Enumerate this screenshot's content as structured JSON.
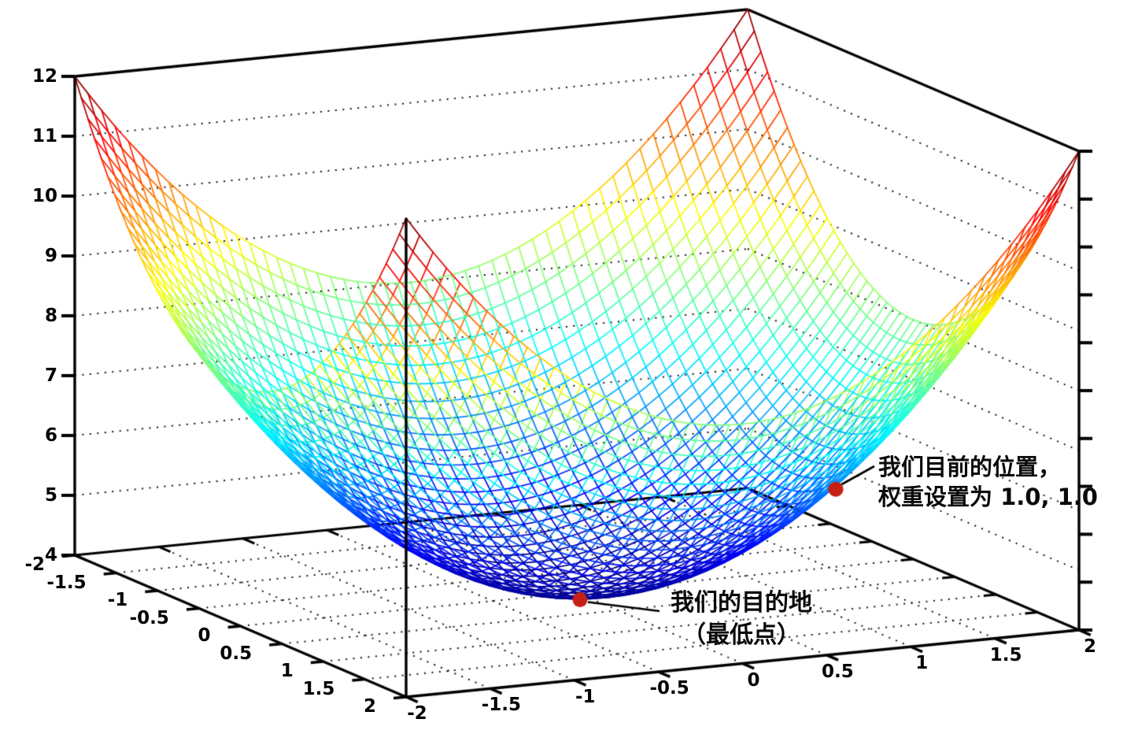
{
  "figure": {
    "background": "#ffffff",
    "description": "3D wireframe plot of a bowl-shaped loss surface over two weights"
  },
  "chart_data": {
    "type": "surface3d-wireframe",
    "surface_formula": "z = 4 + x^2 + y^2",
    "surface_coeffs": {
      "const": 4,
      "x2": 1,
      "y2": 1
    },
    "colormap": "jet",
    "mesh_divisions": 50,
    "x_axis": {
      "range": [
        -2,
        2
      ],
      "tick_step": 0.5,
      "tick_labels": [
        "-2",
        "-1.5",
        "-1",
        "-0.5",
        "0",
        "0.5",
        "1",
        "1.5",
        "2"
      ]
    },
    "y_axis": {
      "range": [
        -2,
        2
      ],
      "tick_step": 0.5,
      "tick_labels": [
        "-2",
        "-1.5",
        "-1",
        "-0.5",
        "0",
        "0.5",
        "1",
        "1.5",
        "2"
      ]
    },
    "z_axis": {
      "range": [
        4,
        12
      ],
      "tick_step": 1,
      "tick_labels": [
        "4",
        "5",
        "6",
        "7",
        "8",
        "9",
        "10",
        "11",
        "12"
      ]
    },
    "right_edge_ticks": 11,
    "z_gridlines": [
      5,
      6,
      7,
      8,
      9,
      10,
      11
    ],
    "floor_grid_step": 0.5,
    "grid_style": "dotted",
    "point_color": "#c62014",
    "points": [
      {
        "name": "destination",
        "x": 0,
        "y": 0,
        "z": 4
      },
      {
        "name": "current-position",
        "x": 1,
        "y": 1,
        "z": 6
      }
    ],
    "annotations": {
      "destination": {
        "line1": "我们的目的地",
        "line2": "（最低点）"
      },
      "current": {
        "line1": "我们目前的位置，",
        "line2": "权重设置为 1.0, 1.0"
      }
    }
  }
}
